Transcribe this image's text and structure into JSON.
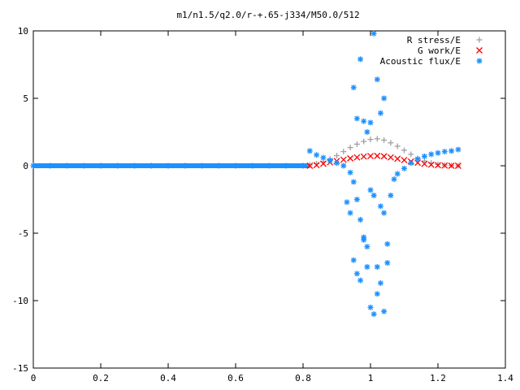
{
  "chart_data": {
    "type": "scatter",
    "title": "m1/n1.5/q2.0/r-+.65-j334/M50.0/512",
    "xlabel": "",
    "ylabel": "",
    "xlim": [
      0,
      1.4
    ],
    "ylim": [
      -15,
      10
    ],
    "x_ticks": [
      "0",
      "0.2",
      "0.4",
      "0.6",
      "0.8",
      "1",
      "1.2",
      "1.4"
    ],
    "y_ticks": [
      "10",
      "5",
      "0",
      "-5",
      "-10",
      "-15"
    ],
    "x_tick_values": [
      0,
      0.2,
      0.4,
      0.6,
      0.8,
      1.0,
      1.2,
      1.4
    ],
    "y_tick_values": [
      10,
      5,
      0,
      -5,
      -10,
      -15
    ],
    "grid": false,
    "legend_position": "top-right",
    "series": [
      {
        "name": "R stress/E",
        "marker": "+",
        "color": "#a0a0a0",
        "x": [
          0.82,
          0.84,
          0.86,
          0.88,
          0.9,
          0.92,
          0.94,
          0.96,
          0.98,
          1.0,
          1.02,
          1.04,
          1.06,
          1.08,
          1.1,
          1.12,
          1.14,
          1.16,
          1.18,
          1.2,
          1.22,
          1.24,
          1.26
        ],
        "y": [
          0.05,
          0.15,
          0.3,
          0.5,
          0.75,
          1.05,
          1.35,
          1.6,
          1.8,
          1.95,
          2.0,
          1.9,
          1.7,
          1.45,
          1.15,
          0.85,
          0.55,
          0.35,
          0.2,
          0.1,
          0.05,
          0.02,
          0.0
        ]
      },
      {
        "name": "G work/E",
        "marker": "x",
        "color": "#ff0000",
        "x": [
          0.82,
          0.84,
          0.86,
          0.88,
          0.9,
          0.92,
          0.94,
          0.96,
          0.98,
          1.0,
          1.02,
          1.04,
          1.06,
          1.08,
          1.1,
          1.12,
          1.14,
          1.16,
          1.18,
          1.2,
          1.22,
          1.24,
          1.26
        ],
        "y": [
          0.0,
          0.05,
          0.15,
          0.25,
          0.35,
          0.45,
          0.55,
          0.62,
          0.68,
          0.72,
          0.73,
          0.7,
          0.62,
          0.52,
          0.42,
          0.32,
          0.22,
          0.14,
          0.08,
          0.04,
          0.02,
          0.0,
          0.0
        ]
      },
      {
        "name": "Acoustic flux/E",
        "marker": "*",
        "color": "#1e90ff",
        "x": [
          0.82,
          0.84,
          0.86,
          0.88,
          0.9,
          0.92,
          0.94,
          0.95,
          0.96,
          0.97,
          0.98,
          0.99,
          1.0,
          1.01,
          1.02,
          1.03,
          1.04,
          1.05,
          1.06,
          1.07,
          1.08,
          1.1,
          1.12,
          1.14,
          1.16,
          1.18,
          1.2,
          1.22,
          1.24,
          1.26,
          0.93,
          0.94,
          0.95,
          0.96,
          0.97,
          0.98,
          0.99,
          1.0,
          1.01,
          1.02,
          1.03,
          1.04,
          1.05,
          0.95,
          0.96,
          0.98,
          1.0,
          1.02,
          1.04,
          0.97,
          0.99,
          1.01,
          1.03
        ],
        "y": [
          1.1,
          0.8,
          0.6,
          0.4,
          0.2,
          0.0,
          -0.5,
          -1.2,
          -2.5,
          -4.0,
          -5.5,
          -7.5,
          -10.5,
          -11.0,
          -9.5,
          -8.7,
          -10.8,
          -7.2,
          -2.2,
          -1.0,
          -0.6,
          -0.2,
          0.2,
          0.5,
          0.7,
          0.85,
          0.95,
          1.05,
          1.1,
          1.2,
          -2.7,
          -3.5,
          -7.0,
          -8.0,
          -8.5,
          -5.3,
          -6.0,
          -1.8,
          -2.2,
          -7.5,
          -3.0,
          -3.5,
          -5.8,
          5.8,
          3.5,
          3.3,
          3.2,
          6.4,
          5.0,
          7.9,
          2.5,
          9.8,
          3.9
        ]
      },
      {
        "name": "",
        "marker": "*",
        "color": "#1e90ff",
        "x": [
          0.0,
          0.05,
          0.1,
          0.15,
          0.2,
          0.25,
          0.3,
          0.35,
          0.4,
          0.45,
          0.5,
          0.55,
          0.6,
          0.65,
          0.7,
          0.75,
          0.8
        ],
        "y": [
          0,
          0,
          0,
          0,
          0,
          0,
          0,
          0,
          0,
          0,
          0,
          0,
          0,
          0,
          0,
          0,
          0
        ]
      }
    ]
  },
  "flat_line": {
    "x_start": 0.0,
    "x_end": 0.82,
    "y": 0.0
  }
}
